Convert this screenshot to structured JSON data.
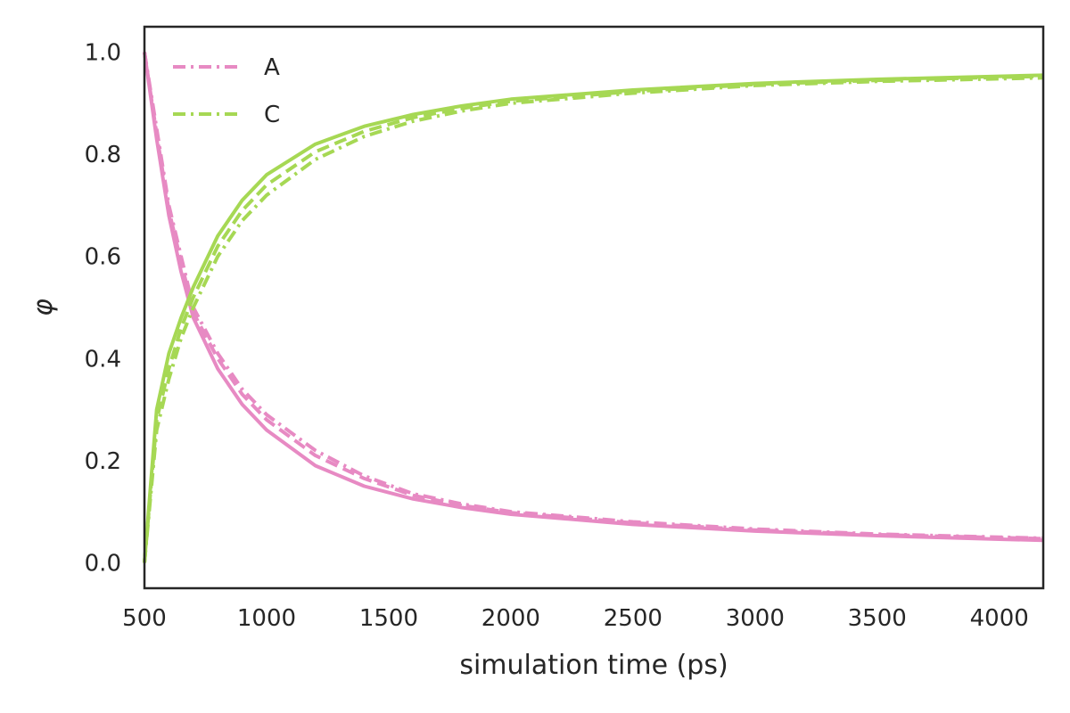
{
  "chart_data": {
    "type": "line",
    "xlabel": "simulation time (ps)",
    "ylabel": "φ",
    "xlim": [
      500,
      4180
    ],
    "ylim": [
      -0.05,
      1.05
    ],
    "xticks": [
      500,
      1000,
      1500,
      2000,
      2500,
      3000,
      3500,
      4000
    ],
    "yticks": [
      0.0,
      0.2,
      0.4,
      0.6,
      0.8,
      1.0
    ],
    "grid": false,
    "legend": {
      "position": "top-left",
      "entries": [
        "A",
        "C"
      ]
    },
    "colors": {
      "A": "#e78ac3",
      "C": "#a6d854"
    },
    "series": [
      {
        "name": "A",
        "style": "dashdot",
        "color": "#e78ac3",
        "x": [
          500,
          550,
          600,
          650,
          700,
          800,
          900,
          1000,
          1200,
          1400,
          1600,
          1800,
          2000,
          2500,
          3000,
          3500,
          4000,
          4180
        ],
        "y": [
          1.0,
          0.85,
          0.7,
          0.6,
          0.5,
          0.41,
          0.34,
          0.29,
          0.22,
          0.17,
          0.135,
          0.115,
          0.1,
          0.08,
          0.066,
          0.056,
          0.05,
          0.048
        ]
      },
      {
        "series_label_hidden": true,
        "style": "solid",
        "color": "#e78ac3",
        "x": [
          500,
          550,
          600,
          650,
          700,
          800,
          900,
          1000,
          1200,
          1400,
          1600,
          1800,
          2000,
          2500,
          3000,
          3500,
          4000,
          4180
        ],
        "y": [
          1.0,
          0.83,
          0.68,
          0.57,
          0.48,
          0.38,
          0.31,
          0.26,
          0.19,
          0.15,
          0.125,
          0.108,
          0.095,
          0.075,
          0.062,
          0.053,
          0.046,
          0.044
        ]
      },
      {
        "series_label_hidden": true,
        "style": "dashed",
        "color": "#e78ac3",
        "x": [
          500,
          550,
          600,
          650,
          700,
          800,
          900,
          1000,
          1200,
          1400,
          1600,
          1800,
          2000,
          2500,
          3000,
          3500,
          4000,
          4180
        ],
        "y": [
          1.0,
          0.84,
          0.69,
          0.59,
          0.49,
          0.4,
          0.33,
          0.28,
          0.21,
          0.165,
          0.132,
          0.112,
          0.098,
          0.078,
          0.064,
          0.055,
          0.049,
          0.047
        ]
      },
      {
        "name": "C",
        "style": "dashdot",
        "color": "#a6d854",
        "x": [
          500,
          550,
          600,
          650,
          700,
          800,
          900,
          1000,
          1200,
          1400,
          1600,
          1800,
          2000,
          2500,
          3000,
          3500,
          4000,
          4180
        ],
        "y": [
          0.0,
          0.26,
          0.36,
          0.44,
          0.5,
          0.6,
          0.67,
          0.72,
          0.79,
          0.835,
          0.865,
          0.885,
          0.9,
          0.92,
          0.935,
          0.943,
          0.948,
          0.95
        ]
      },
      {
        "series_label_hidden": true,
        "style": "solid",
        "color": "#a6d854",
        "x": [
          500,
          550,
          600,
          650,
          700,
          800,
          900,
          1000,
          1200,
          1400,
          1600,
          1800,
          2000,
          2500,
          3000,
          3500,
          4000,
          4180
        ],
        "y": [
          0.0,
          0.3,
          0.41,
          0.48,
          0.54,
          0.64,
          0.71,
          0.76,
          0.82,
          0.855,
          0.878,
          0.895,
          0.908,
          0.926,
          0.939,
          0.947,
          0.953,
          0.955
        ]
      },
      {
        "series_label_hidden": true,
        "style": "dashed",
        "color": "#a6d854",
        "x": [
          500,
          550,
          600,
          650,
          700,
          800,
          900,
          1000,
          1200,
          1400,
          1600,
          1800,
          2000,
          2500,
          3000,
          3500,
          4000,
          4180
        ],
        "y": [
          0.0,
          0.28,
          0.38,
          0.46,
          0.52,
          0.62,
          0.69,
          0.74,
          0.805,
          0.845,
          0.872,
          0.89,
          0.904,
          0.923,
          0.937,
          0.945,
          0.951,
          0.953
        ]
      }
    ]
  }
}
